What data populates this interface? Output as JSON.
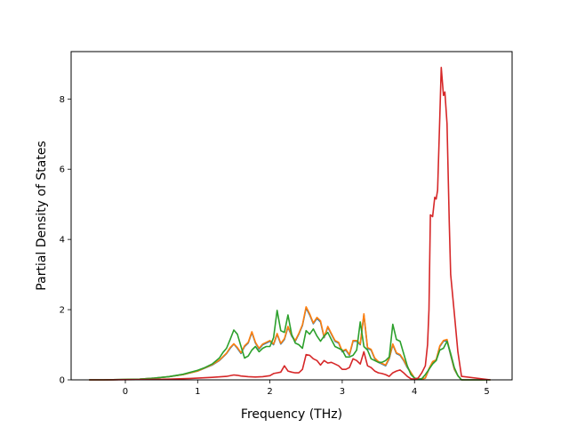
{
  "chart_data": {
    "type": "line",
    "title": "",
    "xlabel": "Frequency (THz)",
    "ylabel": "Partial Density of States",
    "xlim": [
      -0.75,
      5.35
    ],
    "ylim": [
      0,
      9.35
    ],
    "xticks": [
      0,
      1,
      2,
      3,
      4,
      5
    ],
    "yticks": [
      0,
      2,
      4,
      6,
      8
    ],
    "grid": false,
    "legend": "none",
    "series": [
      {
        "color": "#1f77b4",
        "x": [
          -0.5,
          -0.3,
          0,
          0.2,
          0.4,
          0.6,
          0.8,
          1.0,
          1.2,
          1.3,
          1.4,
          1.45,
          1.5,
          1.55,
          1.6,
          1.65,
          1.7,
          1.75,
          1.8,
          1.85,
          1.9,
          1.95,
          2.0,
          2.05,
          2.1,
          2.15,
          2.2,
          2.25,
          2.3,
          2.35,
          2.4,
          2.45,
          2.5,
          2.55,
          2.6,
          2.65,
          2.7,
          2.75,
          2.8,
          2.85,
          2.9,
          2.95,
          3.0,
          3.05,
          3.1,
          3.15,
          3.2,
          3.25,
          3.3,
          3.35,
          3.4,
          3.45,
          3.5,
          3.55,
          3.6,
          3.65,
          3.7,
          3.75,
          3.8,
          3.85,
          3.9,
          3.95,
          4.0,
          4.05,
          4.1,
          4.15,
          4.2,
          4.25,
          4.3,
          4.35,
          4.4,
          4.45,
          4.5,
          4.55,
          4.6,
          4.65,
          5.05
        ],
        "y": [
          0,
          0,
          0.01,
          0.02,
          0.05,
          0.09,
          0.15,
          0.25,
          0.42,
          0.55,
          0.75,
          0.9,
          1.02,
          0.9,
          0.75,
          0.95,
          1.05,
          1.35,
          1.05,
          0.88,
          1.0,
          1.05,
          1.1,
          1.0,
          1.3,
          1.02,
          1.15,
          1.5,
          1.25,
          1.1,
          1.3,
          1.55,
          2.05,
          1.85,
          1.6,
          1.75,
          1.65,
          1.2,
          1.5,
          1.3,
          1.1,
          1.05,
          0.8,
          0.85,
          0.7,
          1.1,
          1.1,
          1.0,
          1.85,
          0.9,
          0.85,
          0.6,
          0.5,
          0.45,
          0.4,
          0.6,
          1.0,
          0.75,
          0.7,
          0.55,
          0.35,
          0.2,
          0.05,
          0.02,
          0.02,
          0.05,
          0.3,
          0.5,
          0.55,
          0.95,
          1.1,
          1.12,
          0.7,
          0.3,
          0.12,
          0,
          0
        ]
      },
      {
        "color": "#ff7f0e",
        "x": [
          -0.5,
          -0.3,
          0,
          0.2,
          0.4,
          0.6,
          0.8,
          1.0,
          1.2,
          1.3,
          1.4,
          1.45,
          1.5,
          1.55,
          1.6,
          1.65,
          1.7,
          1.75,
          1.8,
          1.85,
          1.9,
          1.95,
          2.0,
          2.05,
          2.1,
          2.15,
          2.2,
          2.25,
          2.3,
          2.35,
          2.4,
          2.45,
          2.5,
          2.55,
          2.6,
          2.65,
          2.7,
          2.75,
          2.8,
          2.85,
          2.9,
          2.95,
          3.0,
          3.05,
          3.1,
          3.15,
          3.2,
          3.25,
          3.3,
          3.35,
          3.4,
          3.45,
          3.5,
          3.55,
          3.6,
          3.65,
          3.7,
          3.75,
          3.8,
          3.85,
          3.9,
          3.95,
          4.0,
          4.05,
          4.1,
          4.15,
          4.2,
          4.25,
          4.3,
          4.35,
          4.4,
          4.45,
          4.5,
          4.55,
          4.6,
          4.65,
          5.05
        ],
        "y": [
          0,
          0,
          0.01,
          0.02,
          0.05,
          0.09,
          0.15,
          0.25,
          0.43,
          0.56,
          0.76,
          0.92,
          1.03,
          0.92,
          0.77,
          0.97,
          1.07,
          1.37,
          1.07,
          0.9,
          1.02,
          1.07,
          1.12,
          1.02,
          1.32,
          1.04,
          1.17,
          1.52,
          1.27,
          1.12,
          1.32,
          1.57,
          2.08,
          1.88,
          1.62,
          1.78,
          1.68,
          1.22,
          1.52,
          1.32,
          1.12,
          1.07,
          0.82,
          0.87,
          0.72,
          1.12,
          1.12,
          1.02,
          1.88,
          0.92,
          0.87,
          0.62,
          0.52,
          0.47,
          0.42,
          0.62,
          1.02,
          0.77,
          0.72,
          0.57,
          0.37,
          0.21,
          0.05,
          0.02,
          0.02,
          0.05,
          0.32,
          0.52,
          0.57,
          0.97,
          1.12,
          1.15,
          0.72,
          0.31,
          0.12,
          0,
          0
        ]
      },
      {
        "color": "#2ca02c",
        "x": [
          -0.5,
          -0.3,
          0,
          0.2,
          0.4,
          0.6,
          0.8,
          1.0,
          1.1,
          1.2,
          1.3,
          1.35,
          1.4,
          1.45,
          1.5,
          1.55,
          1.6,
          1.65,
          1.7,
          1.75,
          1.8,
          1.85,
          1.9,
          1.95,
          2.0,
          2.05,
          2.1,
          2.15,
          2.2,
          2.25,
          2.3,
          2.35,
          2.4,
          2.45,
          2.5,
          2.55,
          2.6,
          2.65,
          2.7,
          2.75,
          2.8,
          2.85,
          2.9,
          2.95,
          3.0,
          3.05,
          3.1,
          3.15,
          3.2,
          3.25,
          3.3,
          3.35,
          3.4,
          3.45,
          3.5,
          3.55,
          3.6,
          3.65,
          3.7,
          3.75,
          3.8,
          3.85,
          3.9,
          3.95,
          4.0,
          4.05,
          4.1,
          4.15,
          4.2,
          4.25,
          4.3,
          4.35,
          4.4,
          4.45,
          4.5,
          4.55,
          4.6,
          4.65,
          5.05
        ],
        "y": [
          0,
          0,
          0.01,
          0.02,
          0.05,
          0.09,
          0.16,
          0.27,
          0.35,
          0.45,
          0.62,
          0.78,
          0.9,
          1.15,
          1.42,
          1.3,
          0.95,
          0.62,
          0.68,
          0.85,
          0.95,
          0.8,
          0.9,
          0.95,
          0.95,
          1.2,
          1.98,
          1.4,
          1.35,
          1.85,
          1.3,
          1.05,
          1.0,
          0.9,
          1.4,
          1.3,
          1.45,
          1.25,
          1.1,
          1.25,
          1.35,
          1.15,
          0.95,
          0.9,
          0.85,
          0.65,
          0.65,
          0.7,
          0.85,
          1.65,
          0.95,
          0.85,
          0.6,
          0.55,
          0.5,
          0.5,
          0.55,
          0.65,
          1.58,
          1.15,
          1.1,
          0.75,
          0.4,
          0.15,
          0.05,
          0.02,
          0.03,
          0.15,
          0.3,
          0.45,
          0.55,
          0.85,
          0.9,
          1.1,
          0.75,
          0.35,
          0.12,
          0,
          0
        ]
      },
      {
        "color": "#d62728",
        "x": [
          -0.5,
          -0.3,
          0,
          0.3,
          0.6,
          0.9,
          1.2,
          1.4,
          1.5,
          1.55,
          1.6,
          1.7,
          1.8,
          1.9,
          2.0,
          2.05,
          2.1,
          2.15,
          2.2,
          2.25,
          2.3,
          2.35,
          2.4,
          2.45,
          2.5,
          2.55,
          2.6,
          2.65,
          2.7,
          2.75,
          2.8,
          2.85,
          2.9,
          2.95,
          3.0,
          3.05,
          3.1,
          3.15,
          3.2,
          3.25,
          3.3,
          3.35,
          3.4,
          3.45,
          3.5,
          3.55,
          3.6,
          3.65,
          3.7,
          3.75,
          3.8,
          3.85,
          3.9,
          3.95,
          4.0,
          4.05,
          4.1,
          4.15,
          4.18,
          4.2,
          4.22,
          4.25,
          4.28,
          4.3,
          4.32,
          4.35,
          4.37,
          4.4,
          4.42,
          4.45,
          4.48,
          4.5,
          4.55,
          4.6,
          4.65,
          5.05
        ],
        "y": [
          0,
          0,
          0.005,
          0.01,
          0.02,
          0.04,
          0.07,
          0.1,
          0.14,
          0.13,
          0.11,
          0.09,
          0.08,
          0.09,
          0.12,
          0.18,
          0.2,
          0.22,
          0.4,
          0.25,
          0.22,
          0.2,
          0.2,
          0.3,
          0.72,
          0.7,
          0.6,
          0.55,
          0.42,
          0.55,
          0.48,
          0.5,
          0.45,
          0.4,
          0.3,
          0.3,
          0.35,
          0.6,
          0.55,
          0.45,
          0.8,
          0.4,
          0.35,
          0.25,
          0.2,
          0.18,
          0.15,
          0.1,
          0.2,
          0.25,
          0.28,
          0.2,
          0.1,
          0.03,
          0.02,
          0.05,
          0.2,
          0.4,
          1.0,
          2.0,
          4.7,
          4.65,
          5.2,
          5.15,
          5.4,
          7.5,
          8.9,
          8.1,
          8.2,
          7.3,
          4.5,
          3.0,
          1.9,
          0.8,
          0.1,
          0
        ]
      }
    ]
  }
}
